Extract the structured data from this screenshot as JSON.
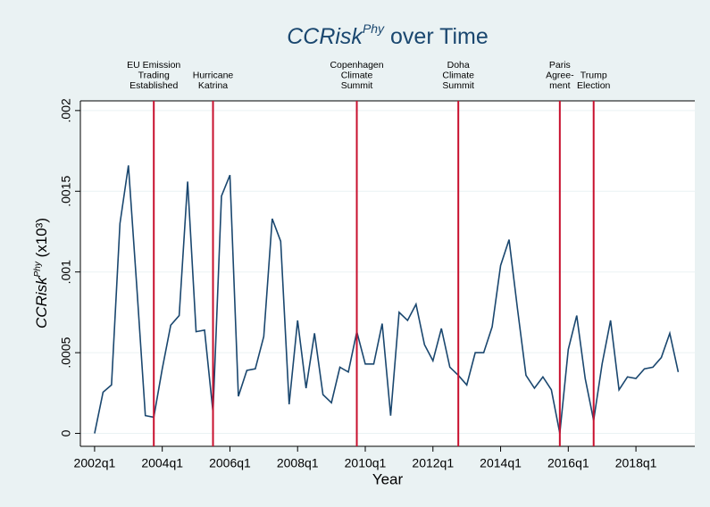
{
  "chart_data": {
    "type": "line",
    "title": {
      "main": "CCRisk",
      "sup": "Phy",
      "rest": " over Time"
    },
    "y_label": {
      "main": "CCRisk",
      "sup": "Phy",
      "rest": " (x10³)"
    },
    "x_label": "Year",
    "x": [
      2002,
      2002.25,
      2002.5,
      2002.75,
      2003,
      2003.25,
      2003.5,
      2003.75,
      2004,
      2004.25,
      2004.5,
      2004.75,
      2005,
      2005.25,
      2005.5,
      2005.75,
      2006,
      2006.25,
      2006.5,
      2006.75,
      2007,
      2007.25,
      2007.5,
      2007.75,
      2008,
      2008.25,
      2008.5,
      2008.75,
      2009,
      2009.25,
      2009.5,
      2009.75,
      2010,
      2010.25,
      2010.5,
      2010.75,
      2011,
      2011.25,
      2011.5,
      2011.75,
      2012,
      2012.25,
      2012.5,
      2012.75,
      2013,
      2013.25,
      2013.5,
      2013.75,
      2014,
      2014.25,
      2014.5,
      2014.75,
      2015,
      2015.25,
      2015.5,
      2015.75,
      2016,
      2016.25,
      2016.5,
      2016.75,
      2017,
      2017.25,
      2017.5,
      2017.75,
      2018,
      2018.25,
      2018.5,
      2018.75,
      2019,
      2019.25
    ],
    "series": [
      {
        "color": "#1a476f",
        "values": [
          0,
          0.000255,
          0.0003,
          0.0013,
          0.00166,
          0.0009,
          0.00011,
          0.0001,
          0.0004,
          0.00067,
          0.00073,
          0.00156,
          0.00063,
          0.00064,
          0.00013,
          0.00147,
          0.0016,
          0.00023,
          0.00039,
          0.0004,
          0.0006,
          0.00133,
          0.00119,
          0.00018,
          0.0007,
          0.00028,
          0.00062,
          0.00024,
          0.00019,
          0.00041,
          0.00038,
          0.00063,
          0.00043,
          0.00043,
          0.00068,
          0.00011,
          0.00075,
          0.0007,
          0.0008,
          0.00055,
          0.00045,
          0.00065,
          0.00041,
          0.00036,
          0.0003,
          0.0005,
          0.0005,
          0.00066,
          0.00104,
          0.0012,
          0.00077,
          0.00036,
          0.00028,
          0.00035,
          0.00027,
          0,
          0.00052,
          0.00073,
          0.00034,
          8e-05,
          0.00043,
          0.0007,
          0.00027,
          0.00035,
          0.00034,
          0.0004,
          0.00041,
          0.00047,
          0.00062,
          0.00038
        ]
      }
    ],
    "events": [
      {
        "x": 2003.75,
        "lines": [
          "EU Emission",
          "Trading",
          "Established"
        ]
      },
      {
        "x": 2005.5,
        "lines": [
          "Hurricane",
          "Katrina"
        ]
      },
      {
        "x": 2009.75,
        "lines": [
          "Copenhagen",
          "Climate",
          "Summit"
        ]
      },
      {
        "x": 2012.75,
        "lines": [
          "Doha",
          "Climate",
          "Summit"
        ]
      },
      {
        "x": 2015.75,
        "lines": [
          "Paris",
          "Agree-",
          "ment"
        ]
      },
      {
        "x": 2016.75,
        "lines": [
          "Trump",
          "Election"
        ]
      }
    ],
    "event_color": "#c8102e",
    "xlim": [
      2001.58,
      2019.74
    ],
    "xticks": [
      {
        "value": 2002,
        "label": "2002q1"
      },
      {
        "value": 2004,
        "label": "2004q1"
      },
      {
        "value": 2006,
        "label": "2006q1"
      },
      {
        "value": 2008,
        "label": "2008q1"
      },
      {
        "value": 2010,
        "label": "2010q1"
      },
      {
        "value": 2012,
        "label": "2012q1"
      },
      {
        "value": 2014,
        "label": "2014q1"
      },
      {
        "value": 2016,
        "label": "2016q1"
      },
      {
        "value": 2018,
        "label": "2018q1"
      }
    ],
    "ylim": [
      -8e-05,
      0.00206
    ],
    "yticks": [
      0,
      {
        "value": 0.0005,
        "label": ".0005"
      },
      {
        "value": 0.001,
        "label": ".001"
      },
      {
        "value": 0.0015,
        "label": ".0015"
      },
      {
        "value": 0.002,
        "label": ".002"
      }
    ],
    "grid": true
  }
}
